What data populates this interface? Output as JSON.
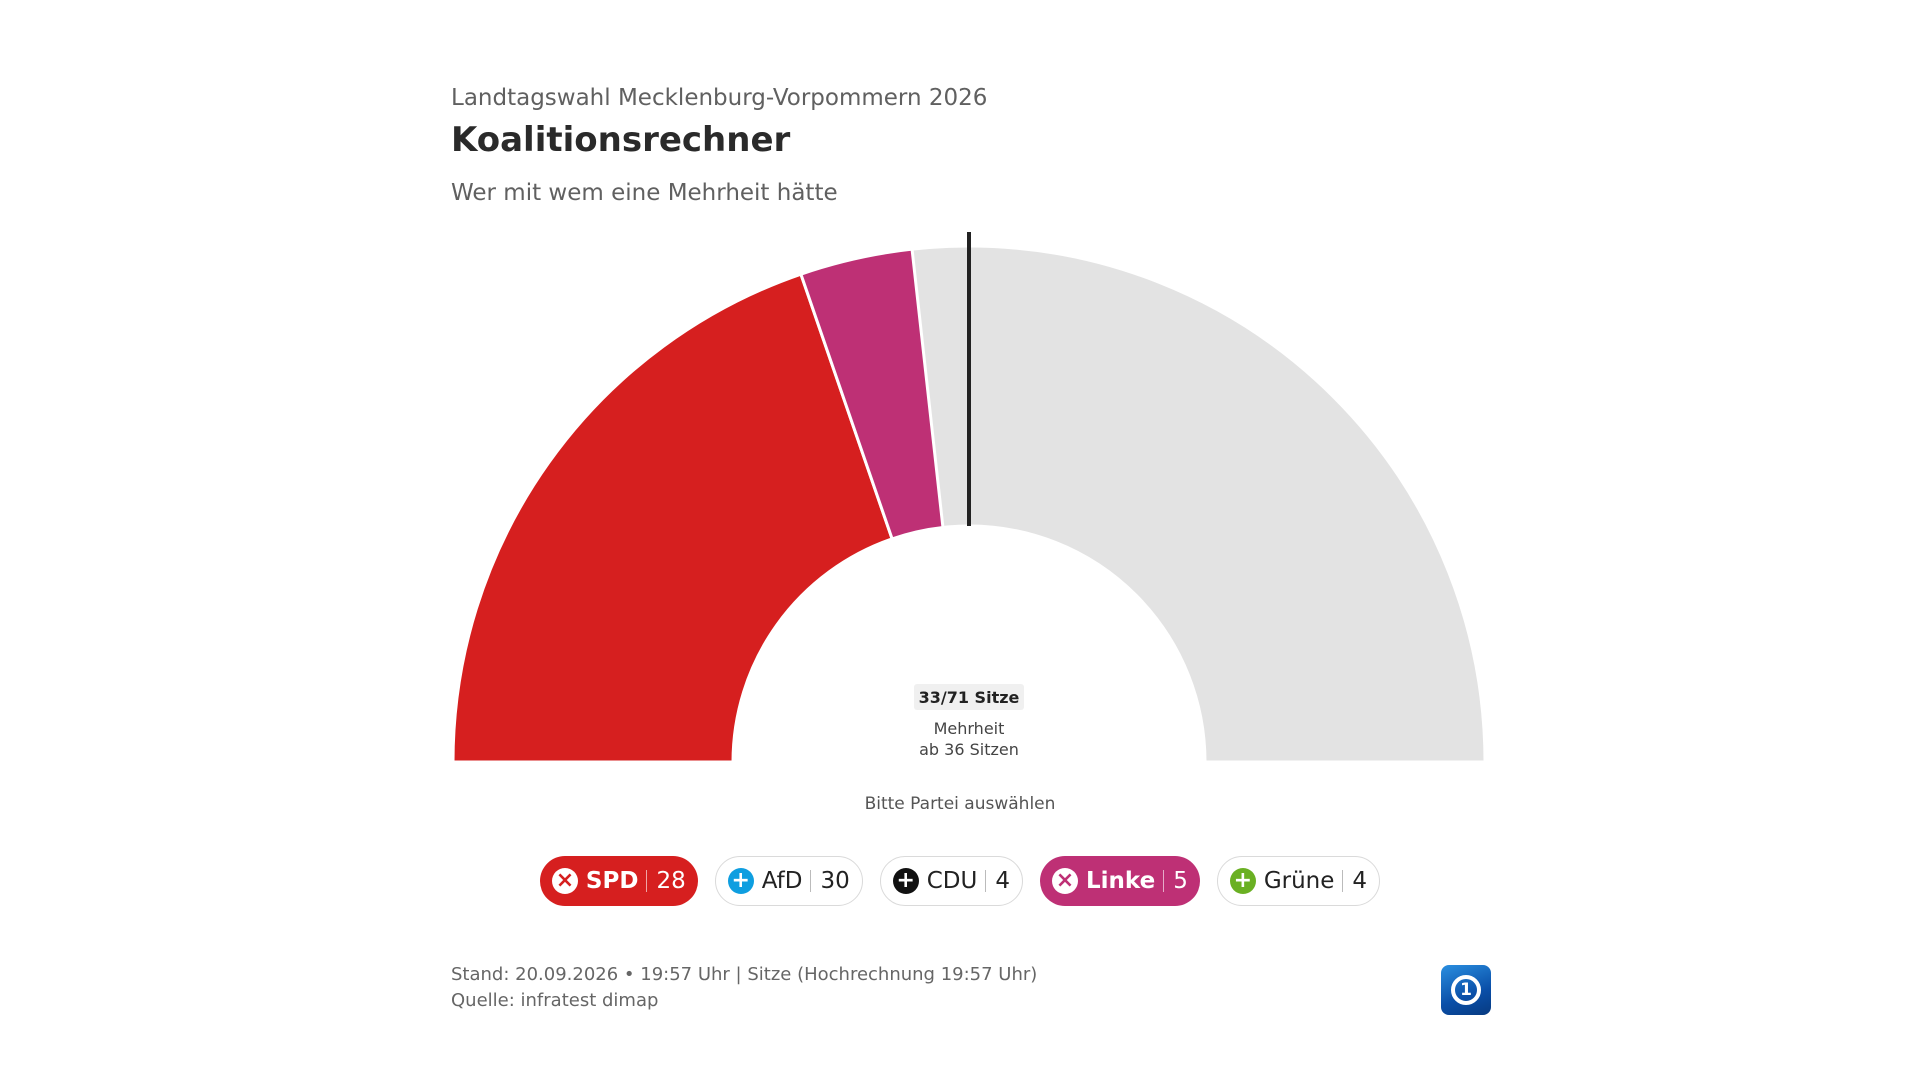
{
  "header": {
    "overline": "Landtagswahl Mecklenburg-Vorpommern 2026",
    "title": "Koalitionsrechner",
    "subtitle": "Wer mit wem eine Mehrheit hätte"
  },
  "chart_data": {
    "type": "semi-donut",
    "total_seats": 71,
    "majority": 36,
    "selected_seats": 33,
    "seat_label": "33/71 Sitze",
    "majority_label_line1": "Mehrheit",
    "majority_label_line2": "ab 36 Sitzen",
    "segments": [
      {
        "party": "SPD",
        "seats": 28,
        "color": "#d61f1f"
      },
      {
        "party": "Linke",
        "seats": 5,
        "color": "#be3075"
      }
    ],
    "remaining_color": "#e3e3e3"
  },
  "hint": "Bitte Partei auswählen",
  "parties": [
    {
      "name": "SPD",
      "seats": "28",
      "selected": true,
      "color": "#d61f1f",
      "icon": "close-icon",
      "glyph": "×"
    },
    {
      "name": "AfD",
      "seats": "30",
      "selected": false,
      "color": "#0e9ee0",
      "icon": "plus-icon",
      "glyph": "+"
    },
    {
      "name": "CDU",
      "seats": "4",
      "selected": false,
      "color": "#111111",
      "icon": "plus-icon",
      "glyph": "+"
    },
    {
      "name": "Linke",
      "seats": "5",
      "selected": true,
      "color": "#be3075",
      "icon": "close-icon",
      "glyph": "×"
    },
    {
      "name": "Grüne",
      "seats": "4",
      "selected": false,
      "color": "#6ab023",
      "icon": "plus-icon",
      "glyph": "+"
    }
  ],
  "footer": {
    "stand": "Stand: 20.09.2026 • 19:57 Uhr | Sitze (Hochrechnung 19:57 Uhr)",
    "quelle": "Quelle: infratest dimap"
  },
  "logo": {
    "icon": "ard-logo-icon",
    "text": "1"
  }
}
